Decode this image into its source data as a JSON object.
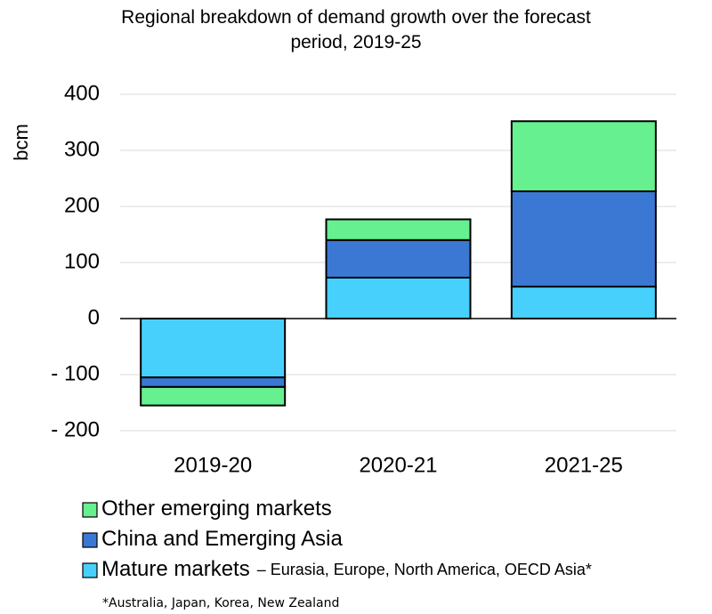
{
  "chart_data": {
    "type": "stacked_bar",
    "title": "Regional breakdown of demand growth over the forecast period, 2019-25",
    "y_label": "bcm",
    "categories": [
      "2019-20",
      "2020-21",
      "2021-25"
    ],
    "series": [
      {
        "name": "Mature markets",
        "name_detail": "– Eurasia, Europe, North America, OECD Asia*",
        "color": "#47d0fb",
        "values": [
          -105,
          73,
          57
        ]
      },
      {
        "name": "China and Emerging Asia",
        "color": "#3a78d4",
        "values": [
          -17,
          67,
          170
        ]
      },
      {
        "name": "Other emerging markets",
        "color": "#66f08f",
        "values": [
          -33,
          37,
          125
        ]
      }
    ],
    "ylim": [
      -200,
      400
    ],
    "yticks": [
      {
        "value": -200,
        "label": "- 200"
      },
      {
        "value": -100,
        "label": "- 100"
      },
      0,
      100,
      200,
      300,
      400
    ],
    "grid": true,
    "footnote": "*Australia, Japan, Korea, New Zealand"
  }
}
